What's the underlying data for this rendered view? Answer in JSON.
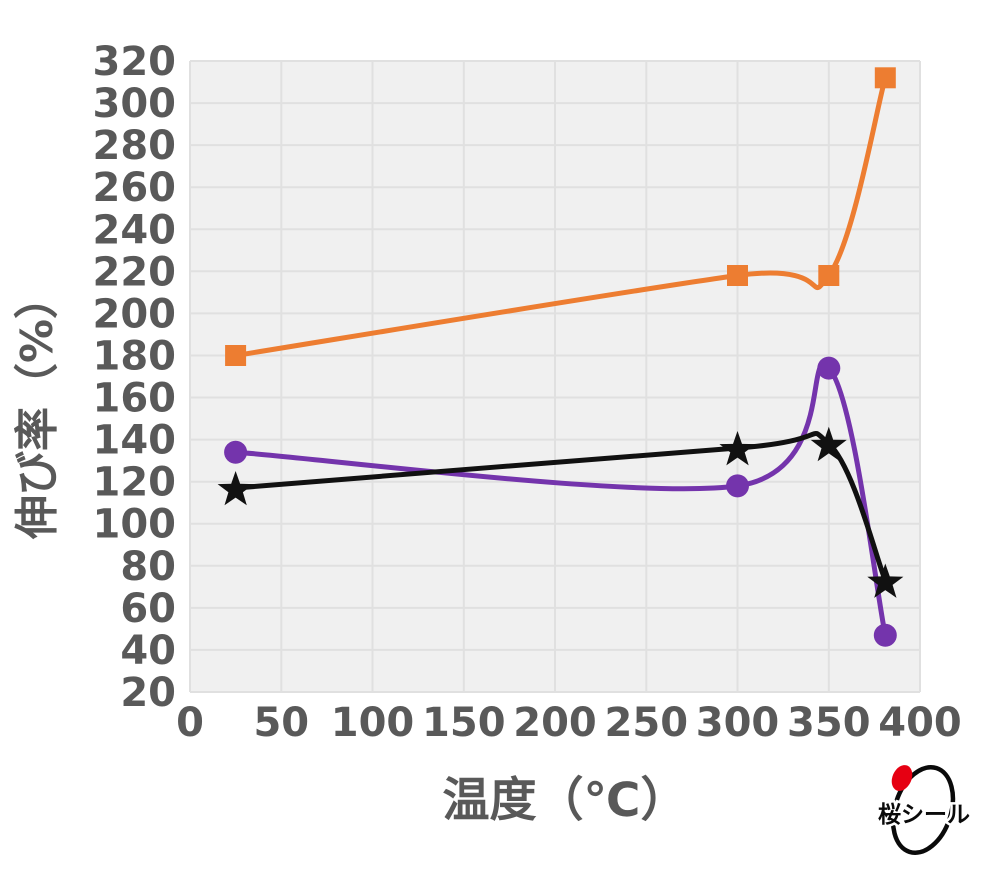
{
  "chart_data": {
    "type": "line",
    "title": "",
    "xlabel": "温度（℃）",
    "ylabel": "伸び率（%）",
    "xlim": [
      0,
      400
    ],
    "ylim": [
      20,
      320
    ],
    "x_ticks": [
      0,
      50,
      100,
      150,
      200,
      250,
      300,
      350,
      400
    ],
    "y_ticks": [
      20,
      40,
      60,
      80,
      100,
      120,
      140,
      160,
      180,
      200,
      220,
      240,
      260,
      280,
      300,
      320
    ],
    "grid": true,
    "legend": false,
    "smooth": true,
    "series": [
      {
        "name": "orange-square-series",
        "marker": "square",
        "color": "#ED7D31",
        "points": [
          [
            25,
            180
          ],
          [
            300,
            218
          ],
          [
            350,
            218
          ],
          [
            381,
            312
          ]
        ]
      },
      {
        "name": "purple-circle-series",
        "marker": "circle",
        "color": "#7434AC",
        "points": [
          [
            25,
            134
          ],
          [
            300,
            118
          ],
          [
            350,
            174
          ],
          [
            381,
            47
          ]
        ]
      },
      {
        "name": "black-star-series",
        "marker": "star",
        "color": "#111111",
        "points": [
          [
            25,
            117
          ],
          [
            300,
            136
          ],
          [
            350,
            138
          ],
          [
            381,
            73
          ]
        ]
      }
    ]
  },
  "colors": {
    "plot_bg": "#F0F0F0",
    "grid": "#E0E0E0",
    "tick_text": "#595959",
    "axis_title": "#595959"
  },
  "logo": {
    "text": "桜シール",
    "ring_color": "#0a0a0a",
    "dot_color": "#E60012"
  }
}
